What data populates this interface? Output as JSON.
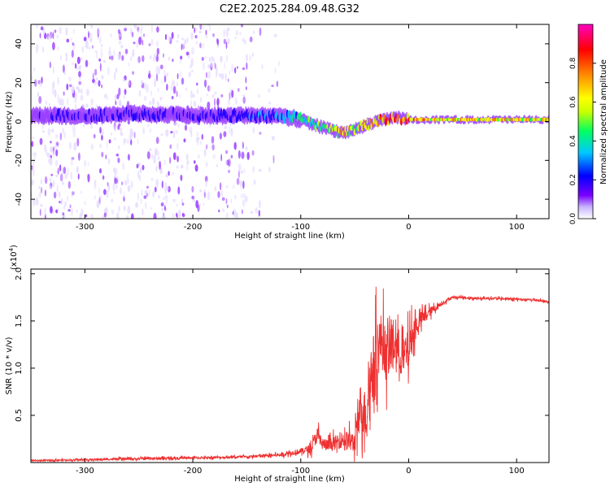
{
  "title": "C2E2.2025.284.09.48.G32",
  "chart_data": [
    {
      "type": "heatmap",
      "xlabel": "Height of straight line (km)",
      "ylabel": "Frequency (Hz)",
      "xlim": [
        -350,
        130
      ],
      "ylim": [
        -50,
        50
      ],
      "xticks": [
        -300,
        -200,
        -100,
        0,
        100
      ],
      "yticks": [
        -40,
        -20,
        0,
        20,
        40
      ],
      "colorbar": {
        "label": "Normalized spectral amplitude",
        "range": [
          0.0,
          1.0
        ],
        "ticks": [
          "0.0",
          "0.2",
          "0.4",
          "0.6",
          "0.8"
        ],
        "tick_values": [
          0.0,
          0.2,
          0.4,
          0.6,
          0.8
        ],
        "colormap": [
          "#ffffff",
          "#d8c8ff",
          "#7a00ff",
          "#0000ff",
          "#00c8ff",
          "#00ff60",
          "#c8ff00",
          "#ffff00",
          "#ff8000",
          "#ff0000",
          "#ff00c0"
        ]
      },
      "ridge": {
        "x": [
          -350,
          -300,
          -250,
          -200,
          -150,
          -120,
          -100,
          -80,
          -60,
          -50,
          -40,
          -30,
          -20,
          -10,
          0,
          20,
          40,
          60,
          80,
          100,
          130
        ],
        "center_hz": [
          3,
          3,
          4,
          3,
          3,
          3,
          1,
          -3,
          -6,
          -4,
          -2,
          0,
          1,
          2,
          1,
          1,
          1,
          1,
          1,
          1,
          1
        ],
        "amplitude": [
          0.2,
          0.25,
          0.25,
          0.25,
          0.3,
          0.35,
          0.45,
          0.55,
          0.7,
          0.6,
          0.65,
          0.8,
          0.85,
          0.85,
          0.8,
          0.75,
          0.7,
          0.7,
          0.7,
          0.7,
          0.7
        ]
      }
    },
    {
      "type": "line",
      "xlabel": "Height of straight line (km)",
      "ylabel": "SNR (10 * v/v)",
      "scale_label": "(x10",
      "scale_exp": "4",
      "scale_close": ")",
      "xlim": [
        -350,
        130
      ],
      "ylim": [
        0,
        2.05
      ],
      "xticks": [
        -300,
        -200,
        -100,
        0,
        100
      ],
      "yticks": [
        "0.5",
        "1.0",
        "1.5",
        "2.0"
      ],
      "ytick_values": [
        0.5,
        1.0,
        1.5,
        2.0
      ],
      "color": "#ee3030",
      "series": {
        "x": [
          -350,
          -300,
          -250,
          -200,
          -150,
          -120,
          -100,
          -90,
          -85,
          -80,
          -75,
          -70,
          -60,
          -50,
          -45,
          -40,
          -35,
          -30,
          -25,
          -20,
          -15,
          -10,
          -5,
          0,
          5,
          10,
          20,
          30,
          40,
          50,
          60,
          80,
          100,
          120,
          130
        ],
        "y": [
          0.02,
          0.03,
          0.04,
          0.05,
          0.06,
          0.08,
          0.12,
          0.15,
          0.3,
          0.2,
          0.18,
          0.2,
          0.25,
          0.2,
          0.6,
          0.5,
          0.9,
          1.2,
          1.3,
          1.1,
          1.3,
          1.2,
          1.1,
          1.2,
          1.4,
          1.5,
          1.6,
          1.68,
          1.75,
          1.75,
          1.74,
          1.74,
          1.73,
          1.72,
          1.7
        ],
        "noise_amp": [
          0.01,
          0.015,
          0.02,
          0.02,
          0.02,
          0.03,
          0.05,
          0.08,
          0.15,
          0.12,
          0.1,
          0.12,
          0.15,
          0.2,
          0.4,
          0.45,
          0.5,
          0.55,
          0.5,
          0.45,
          0.4,
          0.4,
          0.35,
          0.35,
          0.25,
          0.15,
          0.08,
          0.04,
          0.02,
          0.02,
          0.02,
          0.02,
          0.02,
          0.02,
          0.02
        ]
      }
    }
  ]
}
